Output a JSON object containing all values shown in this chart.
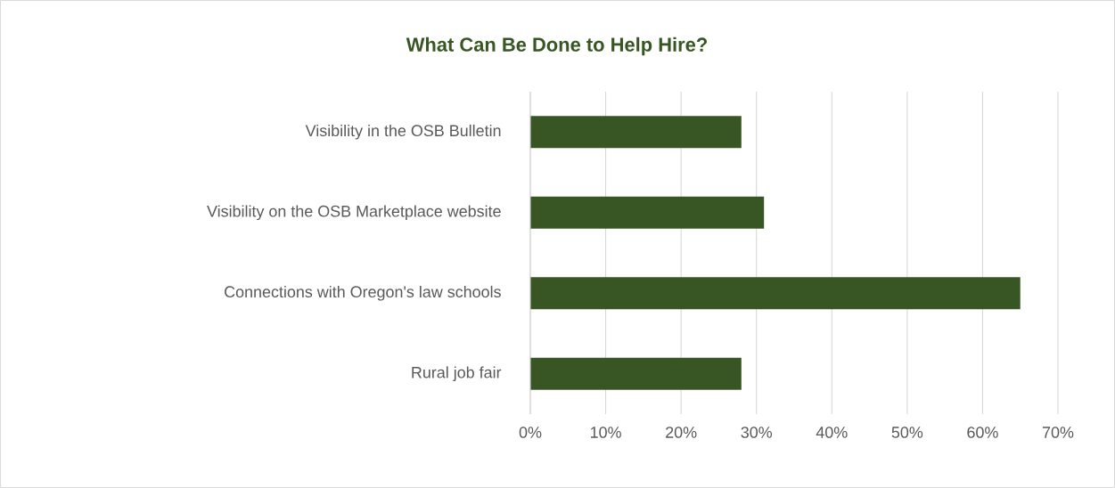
{
  "chart_data": {
    "type": "bar",
    "orientation": "horizontal",
    "title": "What Can Be Done to Help Hire?",
    "categories": [
      "Visibility in the OSB Bulletin",
      "Visibility on the OSB Marketplace website",
      "Connections with Oregon's law schools",
      "Rural job fair"
    ],
    "values": [
      28,
      31,
      65,
      28
    ],
    "color": "#375623",
    "xlim": [
      0,
      70
    ],
    "xticks": [
      {
        "value": 0,
        "label": "0%"
      },
      {
        "value": 10,
        "label": "10%"
      },
      {
        "value": 20,
        "label": "20%"
      },
      {
        "value": 30,
        "label": "30%"
      },
      {
        "value": 40,
        "label": "40%"
      },
      {
        "value": 50,
        "label": "50%"
      },
      {
        "value": 60,
        "label": "60%"
      },
      {
        "value": 70,
        "label": "70%"
      }
    ],
    "grid": "x"
  }
}
